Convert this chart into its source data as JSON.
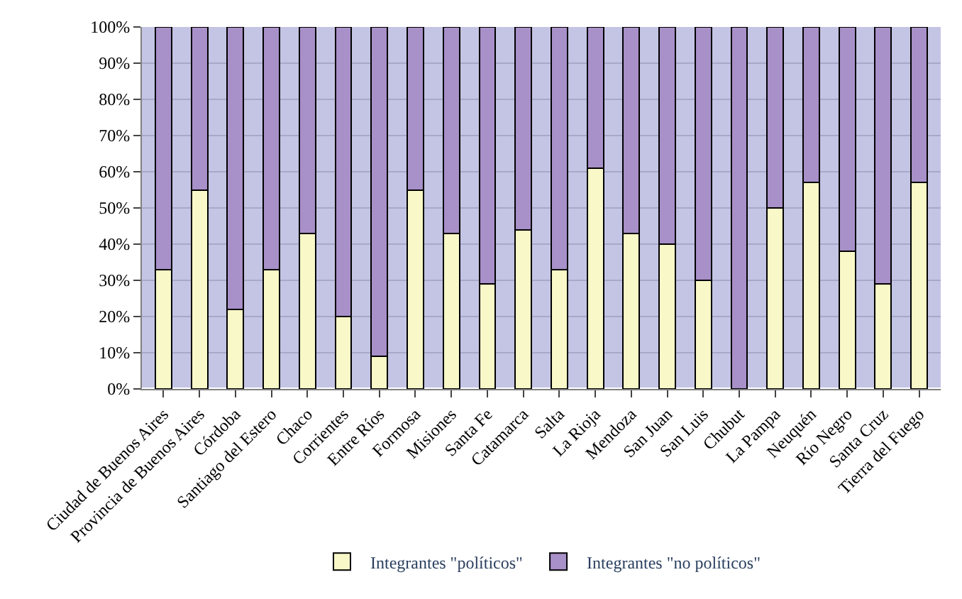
{
  "chart_data": {
    "type": "bar",
    "stacked": true,
    "categories": [
      "Ciudad de Buenos Aires",
      "Provincia de Buenos Aires",
      "Córdoba",
      "Santiago del Estero",
      "Chaco",
      "Corrientes",
      "Entre Ríos",
      "Formosa",
      "Misiones",
      "Santa Fe",
      "Catamarca",
      "Salta",
      "La Rioja",
      "Mendoza",
      "San Juan",
      "San Luis",
      "Chubut",
      "La Pampa",
      "Neuquén",
      "Río Negro",
      "Santa Cruz",
      "Tierra del Fuego"
    ],
    "series": [
      {
        "name": "Integrantes \"políticos\"",
        "color": "#f8f8c8",
        "values": [
          33,
          55,
          22,
          33,
          43,
          20,
          9,
          55,
          43,
          29,
          44,
          33,
          61,
          43,
          40,
          30,
          0,
          50,
          57,
          38,
          29,
          57
        ]
      },
      {
        "name": "Integrantes \"no políticos\"",
        "color": "#a890c8",
        "values": [
          67,
          45,
          78,
          67,
          57,
          80,
          91,
          45,
          57,
          71,
          56,
          67,
          39,
          57,
          60,
          70,
          100,
          50,
          43,
          62,
          71,
          43
        ]
      }
    ],
    "ylim": [
      0,
      100
    ],
    "yticks": [
      {
        "value": 0,
        "label": "0%"
      },
      {
        "value": 10,
        "label": "10%"
      },
      {
        "value": 20,
        "label": "20%"
      },
      {
        "value": 30,
        "label": "30%"
      },
      {
        "value": 40,
        "label": "40%"
      },
      {
        "value": 50,
        "label": "50%"
      },
      {
        "value": 60,
        "label": "60%"
      },
      {
        "value": 70,
        "label": "70%"
      },
      {
        "value": 80,
        "label": "80%"
      },
      {
        "value": 90,
        "label": "90%"
      },
      {
        "value": 100,
        "label": "100%"
      }
    ],
    "grid": "y",
    "legend": "bottom"
  }
}
